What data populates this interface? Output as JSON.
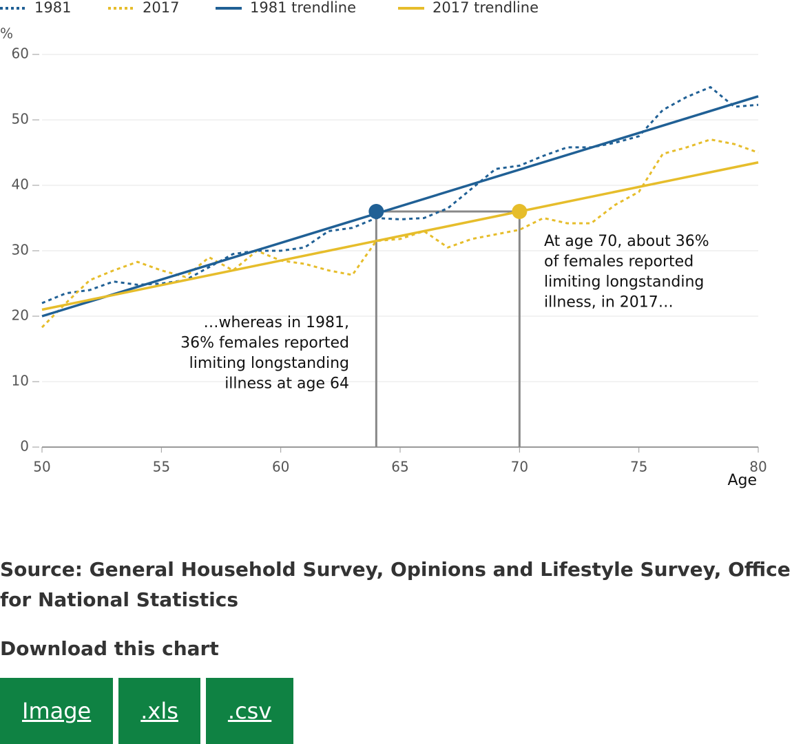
{
  "chart_data": {
    "type": "line",
    "y_label": "%",
    "x_label": "Age",
    "xlim": [
      50,
      80
    ],
    "xticks": [
      50,
      55,
      60,
      65,
      70,
      75,
      80
    ],
    "ylim": [
      0,
      60
    ],
    "yticks": [
      0,
      10,
      20,
      30,
      40,
      50,
      60
    ],
    "grid": true,
    "series": [
      {
        "name": "1981",
        "color": "#206095",
        "style": "dotted",
        "x": [
          50,
          51,
          52,
          53,
          54,
          55,
          56,
          57,
          58,
          59,
          60,
          61,
          62,
          63,
          64,
          65,
          66,
          67,
          68,
          69,
          70,
          71,
          72,
          73,
          74,
          75,
          76,
          77,
          78,
          79,
          80
        ],
        "values": [
          22,
          23.5,
          24,
          25.3,
          24.8,
          25,
          25.5,
          27.5,
          29.5,
          30,
          30,
          30.5,
          33,
          33.5,
          35,
          34.8,
          35,
          36.5,
          39.5,
          42.5,
          43,
          44.5,
          45.8,
          45.8,
          46.5,
          47.5,
          51.5,
          53.5,
          55,
          52,
          52.3
        ]
      },
      {
        "name": "2017",
        "color": "#e6bd2b",
        "style": "dotted",
        "x": [
          50,
          51,
          52,
          53,
          54,
          55,
          56,
          57,
          58,
          59,
          60,
          61,
          62,
          63,
          64,
          65,
          66,
          67,
          68,
          69,
          70,
          71,
          72,
          73,
          74,
          75,
          76,
          77,
          78,
          79,
          80
        ],
        "values": [
          18.3,
          22,
          25.5,
          27,
          28.3,
          27,
          26,
          29,
          27,
          30,
          28.5,
          28,
          27,
          26.3,
          31.5,
          31.8,
          33,
          30.5,
          31.8,
          32.5,
          33.2,
          35,
          34.2,
          34.2,
          37,
          39,
          44.8,
          45.8,
          47,
          46.3,
          45
        ]
      },
      {
        "name": "1981 trendline",
        "color": "#206095",
        "style": "solid",
        "x": [
          50,
          80
        ],
        "values": [
          20,
          53.6
        ]
      },
      {
        "name": "2017 trendline",
        "color": "#e6bd2b",
        "style": "solid",
        "x": [
          50,
          80
        ],
        "values": [
          21,
          43.5
        ]
      }
    ],
    "markers": [
      {
        "x": 64,
        "y": 36,
        "color": "#206095"
      },
      {
        "x": 70,
        "y": 36,
        "color": "#e6bd2b"
      }
    ],
    "annotations": [
      {
        "lines": [
          "…whereas in 1981,",
          "36% females reported",
          "limiting longstanding",
          "illness at age 64"
        ]
      },
      {
        "lines": [
          "At age 70, about 36%",
          "of females reported",
          "limiting longstanding",
          "illness, in 2017…"
        ]
      }
    ]
  },
  "source": "Source: General Household Survey, Opinions and Lifestyle Survey, Office for National Statistics",
  "download": {
    "title": "Download this chart",
    "buttons": [
      "Image",
      ".xls",
      ".csv"
    ]
  }
}
